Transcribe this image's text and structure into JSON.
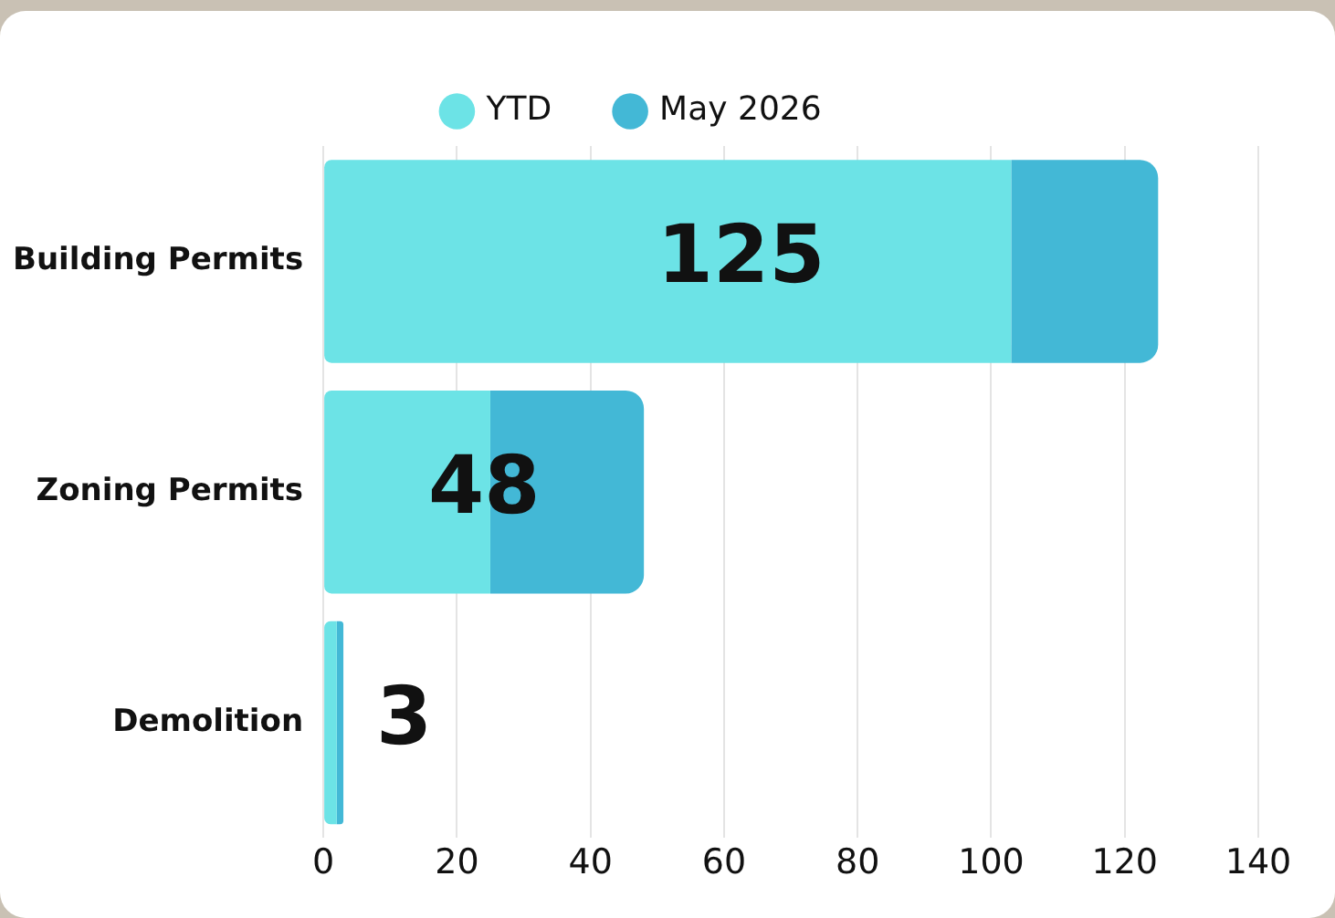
{
  "chart_data": {
    "type": "bar",
    "orientation": "horizontal",
    "stacked": true,
    "categories": [
      "Building Permits",
      "Zoning Permits",
      "Demolition"
    ],
    "series": [
      {
        "name": "YTD",
        "color": "#6ce3e6",
        "values": [
          103,
          25,
          2
        ]
      },
      {
        "name": "May 2026",
        "color": "#43b8d6",
        "values": [
          22,
          23,
          1
        ]
      }
    ],
    "totals": [
      "125",
      "48",
      "3"
    ],
    "xlim": [
      0,
      140
    ],
    "xticks": [
      0,
      20,
      40,
      60,
      80,
      100,
      120,
      140
    ],
    "grid": "x",
    "legend": "top"
  }
}
